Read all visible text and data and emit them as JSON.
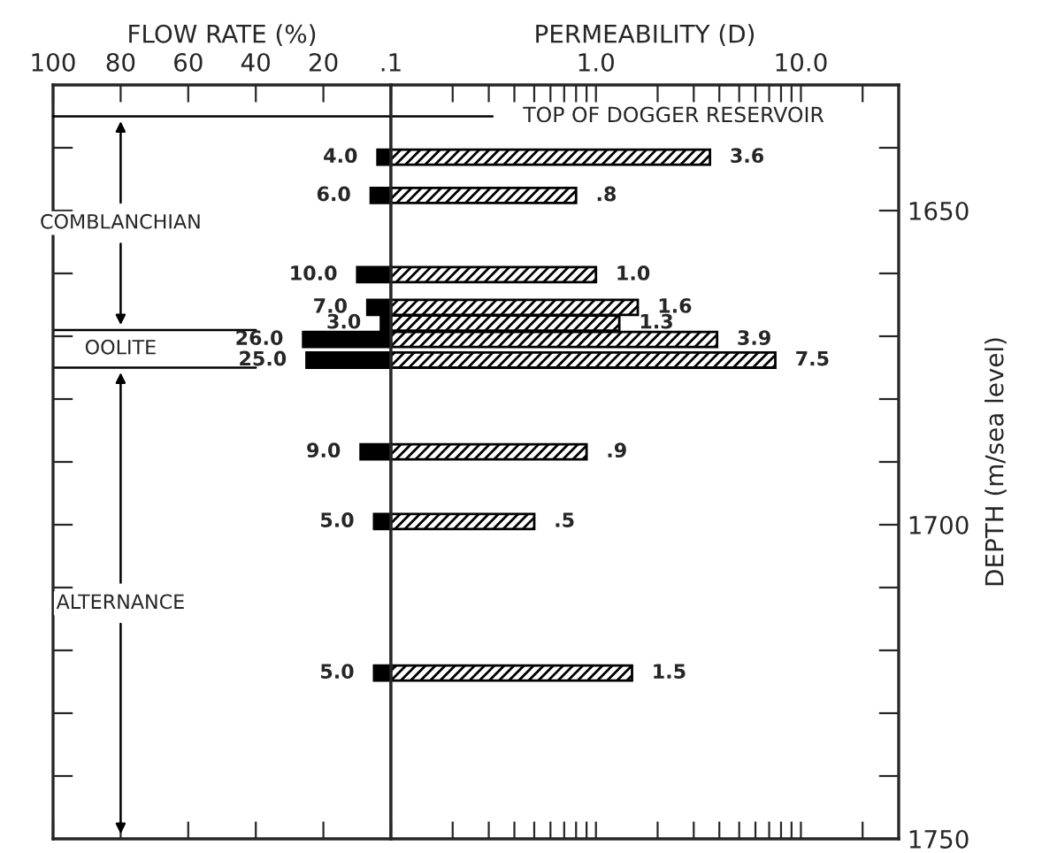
{
  "chart_data": [
    {
      "type": "bar",
      "orientation": "horizontal",
      "xlabel": "FLOW RATE (%)",
      "xlim": [
        100,
        0
      ],
      "xticks": [
        100,
        80,
        60,
        40,
        20
      ],
      "x": [
        1641.5,
        1647.6,
        1660.2,
        1665.4,
        1667.9,
        1670.5,
        1673.8,
        1688.4,
        1699.5,
        1723.6
      ],
      "ylim": [
        1750,
        1630
      ],
      "yticks": [
        {
          "value": 1640,
          "label": null
        },
        {
          "value": 1650,
          "label": null
        },
        {
          "value": 1660,
          "label": null
        },
        {
          "value": 1670,
          "label": null
        },
        {
          "value": 1680,
          "label": null
        },
        {
          "value": 1690,
          "label": null
        },
        {
          "value": 1700,
          "label": null
        },
        {
          "value": 1710,
          "label": null
        },
        {
          "value": 1720,
          "label": null
        },
        {
          "value": 1730,
          "label": null
        },
        {
          "value": 1740,
          "label": null
        }
      ],
      "tick_labels": "x",
      "series": [
        {
          "color": "#000000",
          "values": [
            4.0,
            6.0,
            10.0,
            7.0,
            3.0,
            26.0,
            25.0,
            9.0,
            5.0,
            5.0
          ],
          "value_labels": [
            "4.0",
            "6.0",
            "10.0",
            "7.0",
            "3.0",
            "26.0",
            "25.0",
            "9.0",
            "5.0",
            "5.0"
          ]
        }
      ],
      "ref_lines": [
        {
          "axis": "y",
          "value": 1669
        },
        {
          "axis": "y",
          "value": 1675
        }
      ],
      "annotations": [
        "COMBLANCHIAN",
        "OOLITE",
        "ALTERNANCE"
      ]
    },
    {
      "type": "bar",
      "orientation": "horizontal",
      "xlabel": "PERMEABILITY (D)",
      "ylabel": "DEPTH (m/sea level)",
      "log": "x",
      "xlim": [
        0.1,
        30
      ],
      "xticks": [
        {
          "value": 0.1,
          "label": ".1"
        },
        {
          "value": 0.2,
          "label": null
        },
        {
          "value": 0.3,
          "label": null
        },
        {
          "value": 0.4,
          "label": null
        },
        {
          "value": 0.5,
          "label": null
        },
        {
          "value": 0.6,
          "label": null
        },
        {
          "value": 0.7,
          "label": null
        },
        {
          "value": 0.8,
          "label": null
        },
        {
          "value": 0.9,
          "label": null
        },
        {
          "value": 1,
          "label": "1.0"
        },
        {
          "value": 2,
          "label": null
        },
        {
          "value": 3,
          "label": null
        },
        {
          "value": 4,
          "label": null
        },
        {
          "value": 5,
          "label": null
        },
        {
          "value": 6,
          "label": null
        },
        {
          "value": 7,
          "label": null
        },
        {
          "value": 8,
          "label": null
        },
        {
          "value": 9,
          "label": null
        },
        {
          "value": 10,
          "label": "10.0"
        },
        {
          "value": 20,
          "label": null
        }
      ],
      "x": [
        1641.5,
        1647.6,
        1660.2,
        1665.4,
        1667.9,
        1670.5,
        1673.8,
        1688.4,
        1699.5,
        1723.6
      ],
      "ylim": [
        1750,
        1630
      ],
      "yticks": [
        {
          "value": 1640,
          "label": null
        },
        {
          "value": 1650,
          "label": "1650"
        },
        {
          "value": 1660,
          "label": null
        },
        {
          "value": 1670,
          "label": null
        },
        {
          "value": 1680,
          "label": null
        },
        {
          "value": 1690,
          "label": null
        },
        {
          "value": 1700,
          "label": "1700"
        },
        {
          "value": 1710,
          "label": null
        },
        {
          "value": 1720,
          "label": null
        },
        {
          "value": 1730,
          "label": null
        },
        {
          "value": 1740,
          "label": null
        },
        {
          "value": 1750,
          "label": "1750"
        }
      ],
      "series": [
        {
          "color": "#000000",
          "values": [
            3.6,
            0.8,
            1.0,
            1.6,
            1.3,
            3.9,
            7.5,
            0.9,
            0.5,
            1.5
          ],
          "value_labels": [
            "3.6",
            ".8",
            "1.0",
            "1.6",
            "1.3",
            "3.9",
            "7.5",
            ".9",
            ".5",
            "1.5"
          ]
        }
      ],
      "ref_lines": [
        {
          "axis": "y",
          "value": 1635,
          "label": "TOP OF DOGGER RESERVOIR"
        }
      ]
    }
  ]
}
